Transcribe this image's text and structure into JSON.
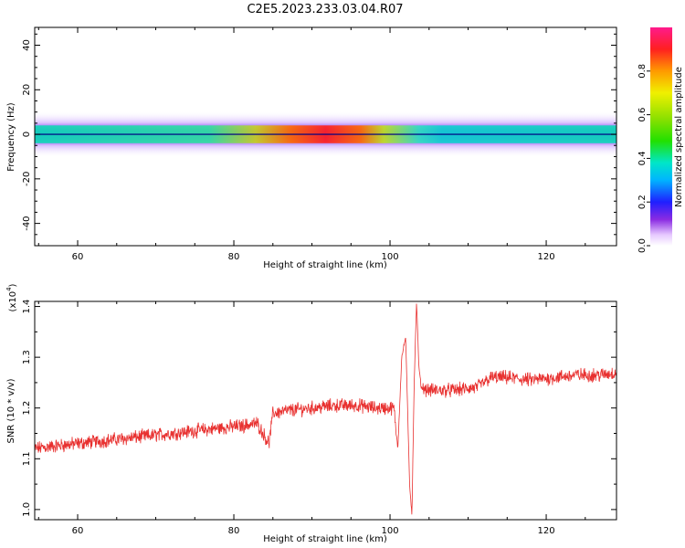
{
  "title": "C2E5.2023.233.03.04.R07",
  "chart_data": [
    {
      "type": "heatmap",
      "xlabel": "Height of straight line (km)",
      "ylabel": "Frequency (Hz)",
      "xlim": [
        54.5,
        129
      ],
      "ylim": [
        -50,
        48
      ],
      "x_ticks": [
        "60",
        "80",
        "100",
        "120"
      ],
      "y_ticks": [
        "40",
        "20",
        "0",
        "-20",
        "-40"
      ],
      "band_center_hz": 0,
      "band_halfwidth_hz": 4,
      "peak_amplitude_range_km": [
        84,
        99
      ],
      "colorbar": {
        "label": "Normalized spectral amplitude",
        "range": [
          0,
          1
        ],
        "ticks": [
          "0.0",
          "0.2",
          "0.4",
          "0.6",
          "0.8"
        ]
      }
    },
    {
      "type": "line",
      "xlabel": "Height of straight line (km)",
      "ylabel": "SNR (10 * v/v)",
      "y_multiplier": "(x10",
      "y_multiplier_exp": "4",
      "y_multiplier_close": ")",
      "xlim": [
        54.5,
        129
      ],
      "ylim": [
        0.98,
        1.41
      ],
      "x_ticks": [
        "60",
        "80",
        "100",
        "120"
      ],
      "y_ticks": [
        "1.0",
        "1.1",
        "1.2",
        "1.3",
        "1.4"
      ],
      "color": "#e8302f",
      "series": [
        {
          "x": [
            54.5,
            57,
            60,
            63,
            66,
            69,
            72,
            75,
            78,
            81,
            83,
            84.5,
            85,
            87,
            90,
            93,
            96,
            98,
            99.5,
            100.5,
            101,
            101.5,
            102,
            102.5,
            102.8,
            103.1,
            103.4,
            103.7,
            104,
            105,
            108,
            111,
            113,
            115,
            118,
            121,
            124,
            127,
            129
          ],
          "y": [
            1.12,
            1.125,
            1.13,
            1.135,
            1.14,
            1.145,
            1.15,
            1.155,
            1.16,
            1.165,
            1.17,
            1.13,
            1.19,
            1.195,
            1.2,
            1.205,
            1.205,
            1.2,
            1.2,
            1.2,
            1.12,
            1.3,
            1.34,
            1.05,
            0.99,
            1.25,
            1.41,
            1.28,
            1.24,
            1.235,
            1.235,
            1.24,
            1.26,
            1.26,
            1.255,
            1.26,
            1.265,
            1.265,
            1.27
          ]
        }
      ]
    }
  ]
}
